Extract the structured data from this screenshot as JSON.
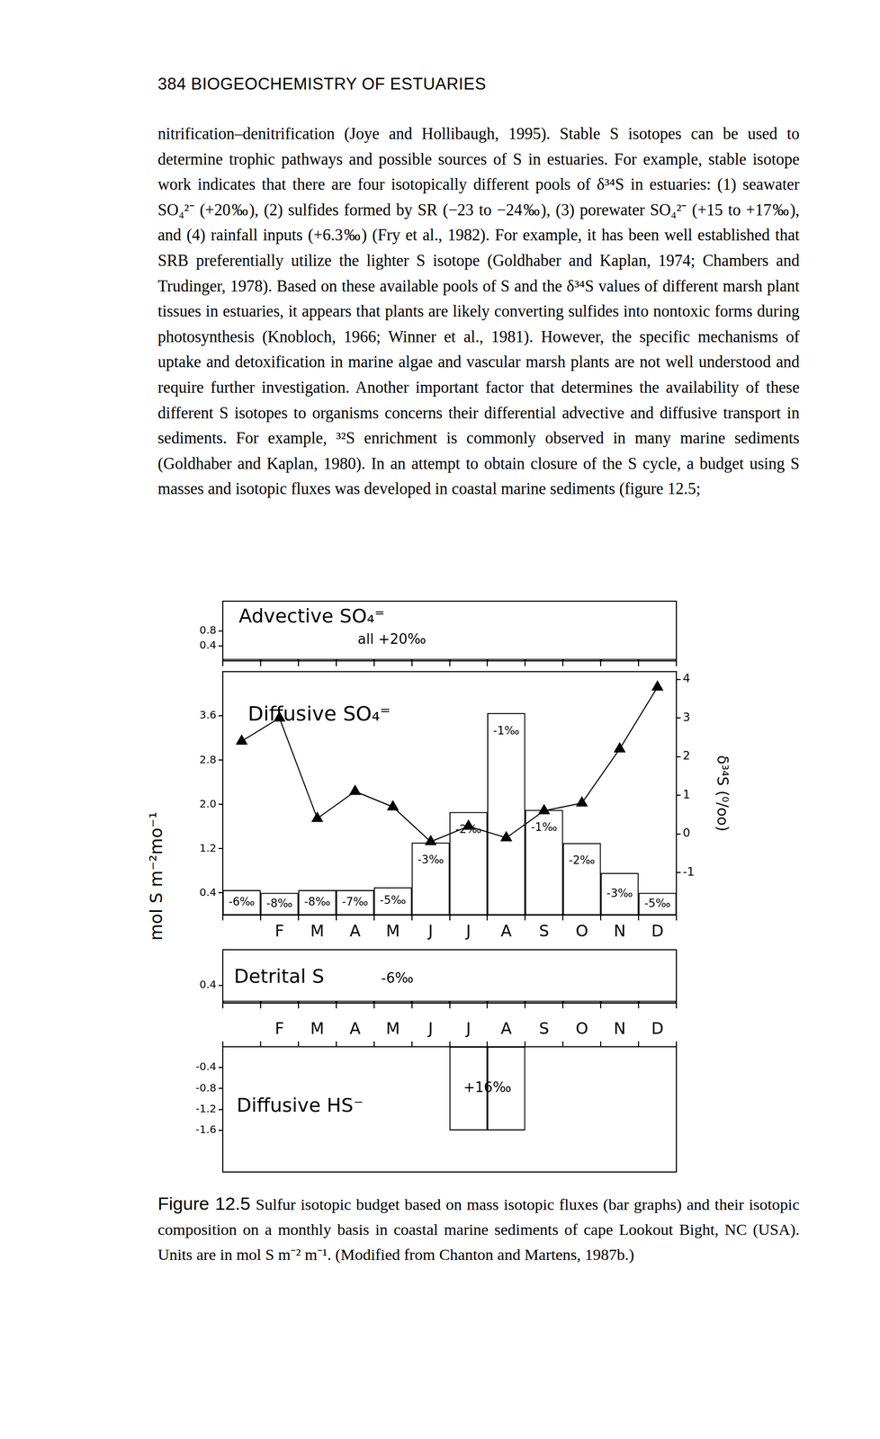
{
  "page": {
    "header": "384 BIOGEOCHEMISTRY OF ESTUARIES",
    "paragraph": "nitrification–denitrification (Joye and Hollibaugh, 1995). Stable S isotopes can be used to determine trophic pathways and possible sources of S in estuaries. For example, stable isotope work indicates that there are four isotopically different pools of δ³⁴S in estuaries: (1) seawater SO₄²⁻ (+20‰), (2) sulfides formed by SR (−23 to −24‰), (3) porewater SO₄²⁻ (+15 to +17‰), and (4) rainfall inputs (+6.3‰) (Fry et al., 1982). For example, it has been well established that SRB preferentially utilize the lighter S isotope (Goldhaber and Kaplan, 1974; Chambers and Trudinger, 1978). Based on these available pools of S and the δ³⁴S values of different marsh plant tissues in estuaries, it appears that plants are likely converting sulfides into nontoxic forms during photosynthesis (Knobloch, 1966; Winner et al., 1981). However, the specific mechanisms of uptake and detoxification in marine algae and vascular marsh plants are not well understood and require further investigation. Another important factor that determines the availability of these different S isotopes to organisms concerns their differential advective and diffusive transport in sediments. For example, ³²S enrichment is commonly observed in many marine sediments (Goldhaber and Kaplan, 1980). In an attempt to obtain closure of the S cycle, a budget using S masses and isotopic fluxes was developed in coastal marine sediments (figure 12.5;",
    "caption_label": "Figure 12.5",
    "caption": "Sulfur isotopic budget based on mass isotopic fluxes (bar graphs) and their isotopic composition on a monthly basis in coastal marine sediments of cape Lookout Bight, NC (USA). Units are in mol S m⁻² m⁻¹. (Modified from Chanton and Martens, 1987b.)"
  },
  "chart_data": [
    {
      "type": "bar",
      "title": "Advective SO₄⁼",
      "annotation": "all +20‰",
      "categories": [
        null,
        null,
        null,
        null,
        null,
        null,
        null,
        null,
        null,
        null,
        null,
        null
      ],
      "values": [
        0.05,
        0.05,
        0.05,
        0.05,
        0.05,
        0.05,
        0.05,
        0.05,
        0.05,
        0.05,
        0.05,
        0.05
      ],
      "color": "#000000",
      "ylim": [
        0,
        1.6
      ],
      "yticks": [
        0.4,
        0.8
      ],
      "tick_labels": "y"
    },
    {
      "type": "bar",
      "title": "Diffusive SO₄⁼",
      "ylabel": "mol S m⁻²mo⁻¹",
      "y2label": "δ³⁴S (⁰/oo)",
      "categories": [
        null,
        "F",
        "M",
        "A",
        "M",
        "J",
        "J",
        "A",
        "S",
        "O",
        "N",
        "D"
      ],
      "series": [
        {
          "type": "bar",
          "color": "#000000",
          "values": [
            0.45,
            0.4,
            0.45,
            0.45,
            0.5,
            1.31,
            1.86,
            3.65,
            1.9,
            1.3,
            0.76,
            0.4
          ],
          "isotope_labels": [
            "-6‰",
            "-8‰",
            "-8‰",
            "-7‰",
            "-5‰",
            "-3‰",
            "-2‰",
            "-1‰",
            "-1‰",
            "-2‰",
            "-3‰",
            "-5‰"
          ]
        },
        {
          "type": "line",
          "axis": "y2",
          "color": "#000000",
          "marker": "triangle",
          "line_style": "solid",
          "values": [
            2.4,
            3.0,
            0.4,
            1.1,
            0.7,
            -0.2,
            0.2,
            -0.1,
            0.6,
            0.8,
            2.2,
            3.8
          ]
        }
      ],
      "ylim": [
        0,
        4.4
      ],
      "yticks": [
        0.4,
        1.2,
        {
          "value": 2,
          "label": "2.0"
        },
        2.8,
        3.6
      ],
      "y2lim": [
        -2.1,
        4.2
      ],
      "y2ticks": [
        -1,
        0,
        1,
        2,
        3,
        4
      ]
    },
    {
      "type": "bar",
      "title": "Detrital S",
      "annotation": "-6‰",
      "categories": [
        null,
        null,
        null,
        null,
        null,
        null,
        null,
        null,
        null,
        null,
        null,
        null
      ],
      "values": [
        0.05,
        0.05,
        0.05,
        0.05,
        0.05,
        0.05,
        0.05,
        0.05,
        0.05,
        0.05,
        0.05,
        0.05
      ],
      "color": "#000000",
      "ylim": [
        0,
        1.2
      ],
      "yticks": [
        0.4
      ],
      "tick_labels": "y"
    },
    {
      "type": "bar",
      "title": "Diffusive HS⁻",
      "annotation": "+16‰",
      "categories": [
        null,
        "F",
        "M",
        "A",
        "M",
        "J",
        "J",
        "A",
        "S",
        "O",
        "N",
        "D"
      ],
      "values": [
        null,
        null,
        null,
        null,
        null,
        null,
        -1.6,
        -1.6,
        null,
        null,
        null,
        null
      ],
      "color": "#000000",
      "ylim": [
        -2.4,
        0
      ],
      "yticks": [
        -0.4,
        -0.8,
        -1.2,
        -1.6
      ]
    }
  ]
}
